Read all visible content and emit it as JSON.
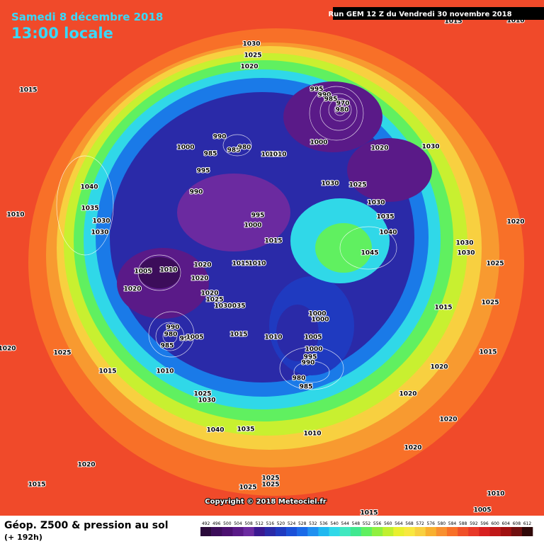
{
  "header": {
    "date": "Samedi 8 décembre 2018",
    "time": "13:00 locale",
    "run": "Run GEM 12 Z du Vendredi 30 novembre 2018"
  },
  "footer": {
    "title": "Géop. Z500 & pression au sol",
    "lead": "(+ 192h)",
    "copyright": "Copyright © 2018 Meteociel.fr"
  },
  "colorbar": {
    "ticks": [
      492,
      496,
      500,
      504,
      508,
      512,
      516,
      520,
      524,
      528,
      532,
      536,
      540,
      544,
      548,
      552,
      556,
      560,
      564,
      568,
      572,
      576,
      580,
      584,
      588,
      592,
      596,
      600,
      604,
      608,
      612
    ],
    "colors": [
      "#2a0a3a",
      "#3c0d5a",
      "#4b1070",
      "#5a1a88",
      "#6b2aa0",
      "#3a1890",
      "#2a2aa8",
      "#1f3ac0",
      "#1a50d8",
      "#1a6ae8",
      "#2090f0",
      "#20b8f0",
      "#30d8e8",
      "#40e8c0",
      "#40e890",
      "#60f060",
      "#90f040",
      "#c0f030",
      "#e8f030",
      "#f8e840",
      "#f8d040",
      "#f8b030",
      "#f89030",
      "#f87028",
      "#f05028",
      "#e83828",
      "#d82020",
      "#c01818",
      "#a01010",
      "#701010",
      "#300808"
    ]
  },
  "isobar_labels": [
    1030,
    1025,
    1020,
    1015,
    1010,
    1015,
    995,
    990,
    985,
    970,
    980,
    990,
    985,
    980,
    1000,
    985,
    1010,
    1010,
    1000,
    1020,
    1030,
    995,
    1030,
    1025,
    1040,
    990,
    1030,
    1035,
    1010,
    1035,
    995,
    1000,
    1030,
    1020,
    1040,
    1030,
    1015,
    1030,
    1030,
    1045,
    1015,
    1010,
    1025,
    1005,
    1010,
    1020,
    1020,
    1020,
    1020,
    1025,
    1035,
    1030,
    1025,
    1015,
    1000,
    1000,
    990,
    980,
    995,
    1005,
    1015,
    1010,
    1005,
    985,
    1020,
    1025,
    1015,
    1000,
    995,
    990,
    1020,
    1015,
    1010,
    980,
    985,
    1020,
    1025,
    1030,
    1020,
    1040,
    1035,
    1010,
    1020,
    1020,
    1015,
    1025,
    1025,
    1025,
    1010,
    1005,
    1015
  ]
}
